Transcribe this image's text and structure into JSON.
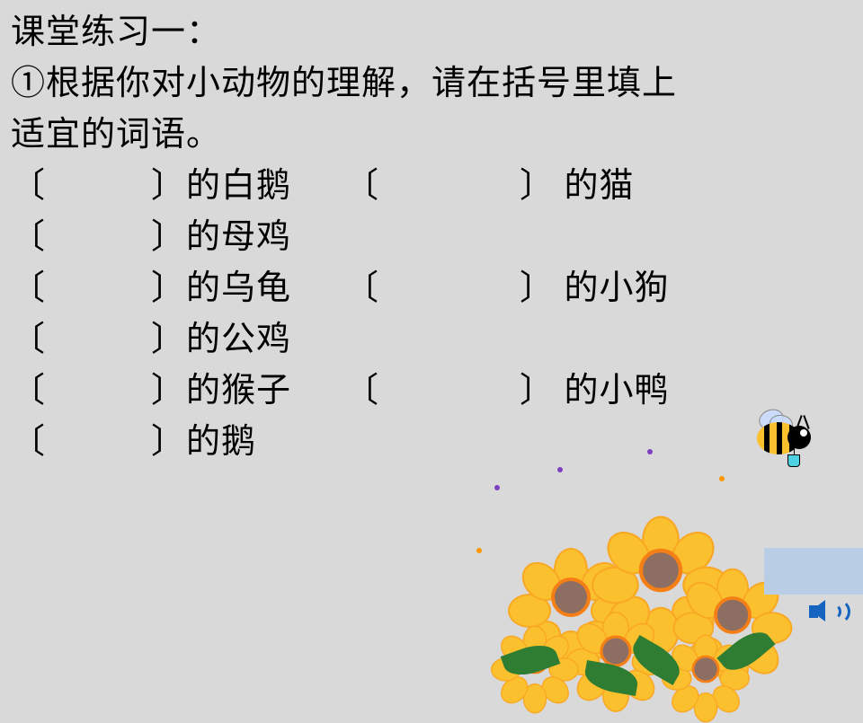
{
  "title": "课堂练习一：",
  "instruction_line1": "①根据你对小动物的理解，请在括号里填上",
  "instruction_line2": "适宜的词语。",
  "rows": [
    {
      "left": "的白鹅",
      "right": "的猫"
    },
    {
      "left": "的母鸡",
      "right": null
    },
    {
      "left": "的乌龟",
      "right": "的小狗"
    },
    {
      "left": "的公鸡",
      "right": null
    },
    {
      "left": "的猴子",
      "right": "的小鸭"
    },
    {
      "left": "的鹅",
      "right": null
    }
  ],
  "bracket_open": "〔",
  "bracket_close": "〕",
  "flower_colors": {
    "petal_fill": "#fbc02d",
    "petal_stroke": "#f9a825",
    "center_fill": "#8d6e63",
    "center_ring": "#f57f17",
    "leaf": "#2e7d32"
  },
  "background_color": "#d9d9d9",
  "text_color": "#000000",
  "placeholder_color": "#b9cde5",
  "sound_icon_color": "#1565c0"
}
